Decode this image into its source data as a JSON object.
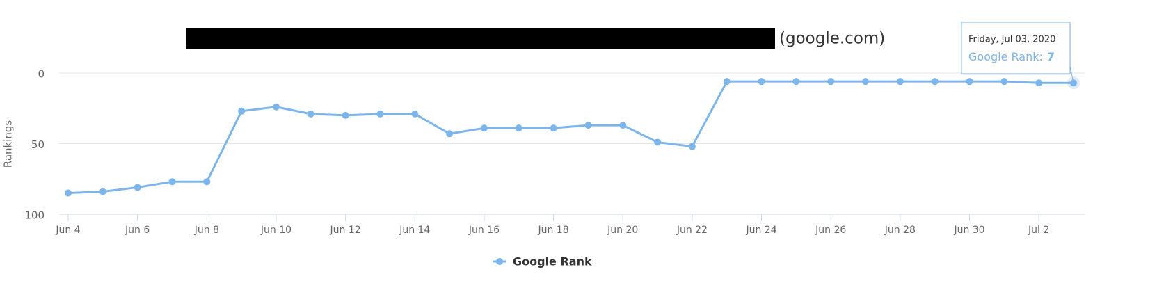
{
  "chart_data": {
    "type": "line",
    "title": "(google.com)",
    "y_label": "Rankings",
    "categories": [
      "Jun 4",
      null,
      "Jun 6",
      null,
      "Jun 8",
      null,
      "Jun 10",
      null,
      "Jun 12",
      null,
      "Jun 14",
      null,
      "Jun 16",
      null,
      "Jun 18",
      null,
      "Jun 20",
      null,
      "Jun 22",
      null,
      "Jun 24",
      null,
      "Jun 26",
      null,
      "Jun 28",
      null,
      "Jun 30",
      null,
      "Jul 2",
      null
    ],
    "series": [
      {
        "name": "Google Rank",
        "color": "#7cb5ec",
        "values": [
          85,
          84,
          81,
          77,
          77,
          27,
          24,
          29,
          30,
          29,
          29,
          43,
          39,
          39,
          39,
          37,
          37,
          49,
          52,
          6,
          6,
          6,
          6,
          6,
          6,
          6,
          6,
          6,
          7,
          7
        ]
      }
    ],
    "ylim": [
      0,
      100
    ],
    "yticks": [
      0,
      50,
      100
    ],
    "y_reversed": true,
    "grid": true,
    "tooltip": {
      "date": "Friday, Jul 03, 2020",
      "label": "Google Rank:"
    }
  }
}
